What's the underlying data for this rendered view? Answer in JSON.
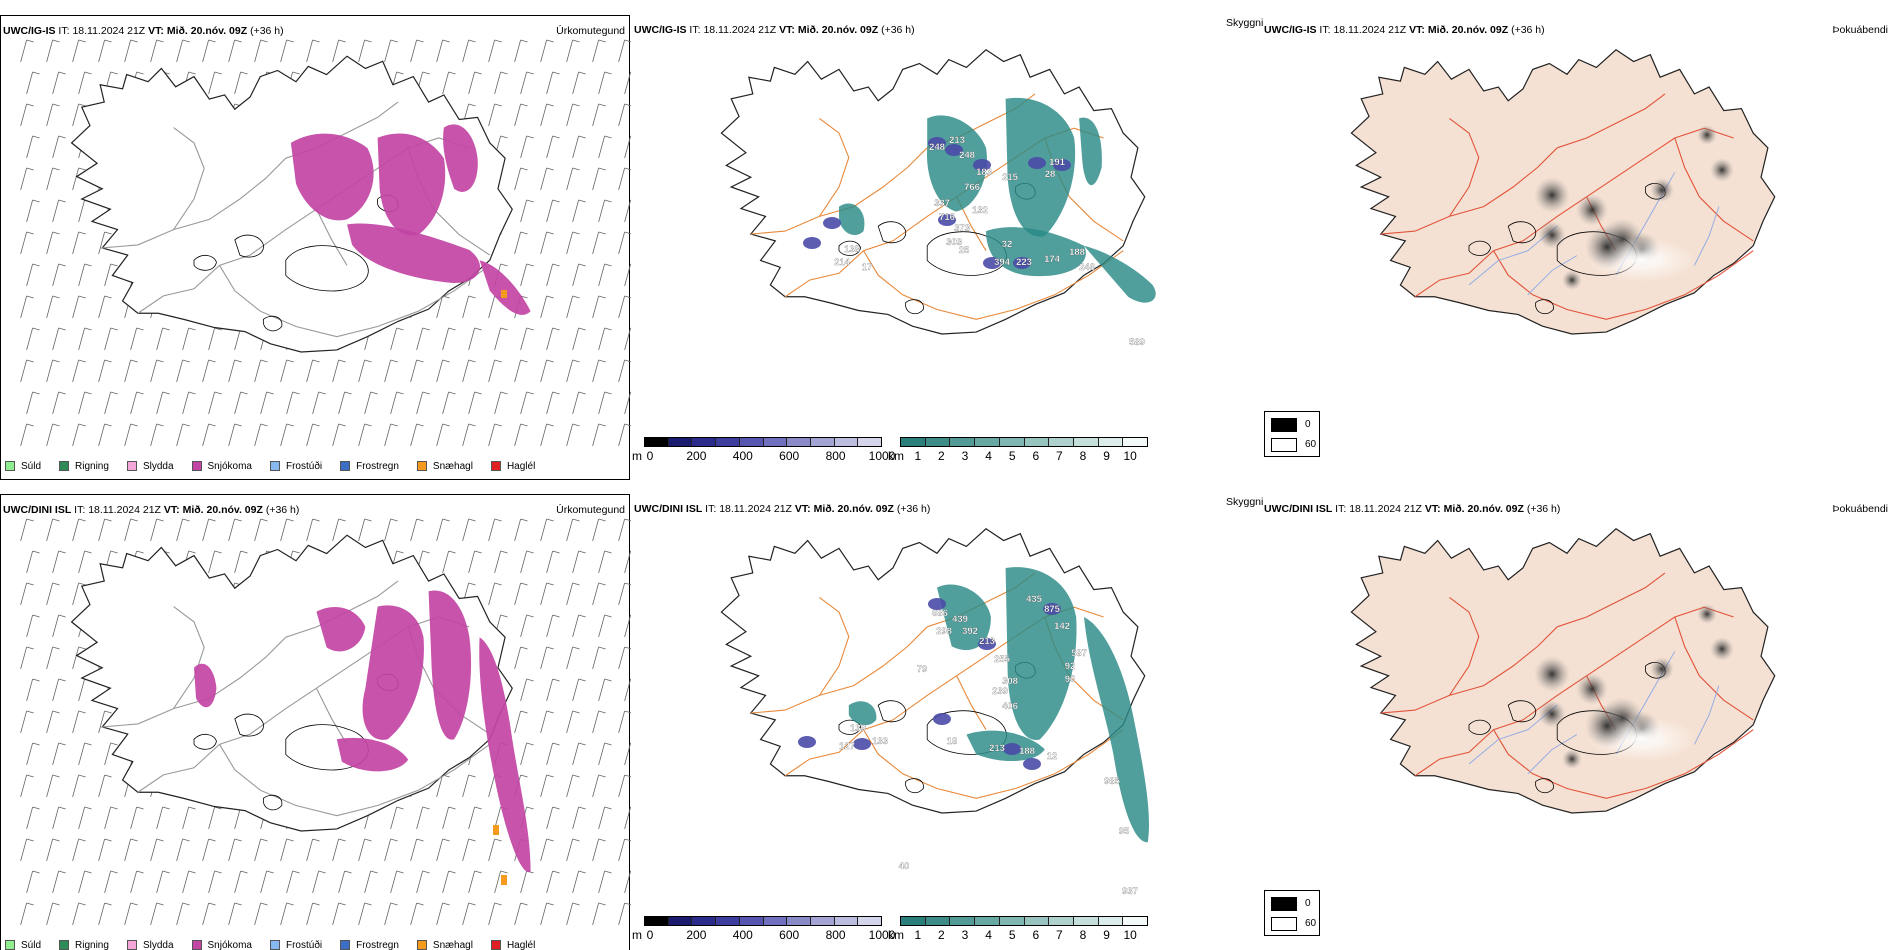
{
  "rows": [
    {
      "model": "UWC/IG-IS",
      "it_label": "IT:",
      "it_value": "18.11.2024 21Z",
      "vt_label": "VT:",
      "vt_value": "Mið. 20.nóv. 09Z",
      "lead": "(+36 h)",
      "numbers": [
        "248",
        "213",
        "248",
        "183",
        "766",
        "215",
        "191",
        "28",
        "337",
        "716",
        "132",
        "373",
        "303",
        "25",
        "32",
        "138",
        "214",
        "17",
        "394",
        "223",
        "174",
        "188",
        "246",
        "589"
      ]
    },
    {
      "model": "UWC/DINI ISL",
      "it_label": "IT:",
      "it_value": "18.11.2024 21Z",
      "vt_label": "VT:",
      "vt_value": "Mið. 20.nóv. 09Z",
      "lead": "(+36 h)",
      "numbers": [
        "686",
        "439",
        "298",
        "392",
        "213",
        "435",
        "875",
        "142",
        "255",
        "587",
        "92",
        "79",
        "308",
        "96",
        "239",
        "406",
        "139",
        "133",
        "18",
        "213",
        "188",
        "12",
        "127",
        "985",
        "95",
        "40",
        "937"
      ]
    }
  ],
  "panel_types": {
    "precip": "Úrkomutegund",
    "visibility": "Skyggni",
    "fog": "Þokuábendi"
  },
  "precip_legend": [
    {
      "label": "Súld",
      "color": "#90ee90"
    },
    {
      "label": "Rigning",
      "color": "#2e8b57"
    },
    {
      "label": "Slydda",
      "color": "#f4a6d8"
    },
    {
      "label": "Snjókoma",
      "color": "#c244a4"
    },
    {
      "label": "Frostúði",
      "color": "#87b8f0"
    },
    {
      "label": "Frostregn",
      "color": "#3a6fc4"
    },
    {
      "label": "Snæhagl",
      "color": "#f59a1c"
    },
    {
      "label": "Haglél",
      "color": "#e02020"
    }
  ],
  "ceiling_bar": {
    "unit": "m",
    "ticks": [
      "0",
      "200",
      "400",
      "600",
      "800",
      "1000"
    ],
    "colors": [
      "#000000",
      "#1a1a6e",
      "#2b2b8c",
      "#3d3d9e",
      "#5656b0",
      "#7070bf",
      "#8a8ac9",
      "#a3a3d4",
      "#bcbcdf",
      "#d4d4ea"
    ]
  },
  "visibility_bar": {
    "unit": "km",
    "ticks": [
      "1",
      "2",
      "3",
      "4",
      "5",
      "6",
      "7",
      "8",
      "9",
      "10"
    ],
    "colors": [
      "#2a7f7a",
      "#3d8c87",
      "#529a95",
      "#68a8a3",
      "#7fb6b1",
      "#97c4bf",
      "#aed1cd",
      "#c5dfdb",
      "#dcecea",
      "#f2f9f8"
    ]
  },
  "fog_legend": {
    "low": "0",
    "high": "60"
  },
  "colors": {
    "snow": "#c244a4",
    "vis": "#2a8a86",
    "ceiling": "#4a4aa8",
    "roads": "#e8893a",
    "fog_land": "#f5e1d3",
    "fog_roads": "#e2533a",
    "fog_rivers": "#8aa8e6"
  }
}
